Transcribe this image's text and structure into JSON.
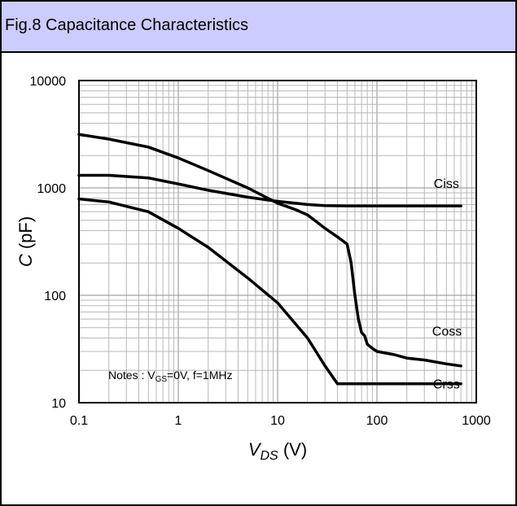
{
  "title": "Fig.8 Capacitance Characteristics",
  "chart_data": {
    "type": "line",
    "xscale": "log",
    "yscale": "log",
    "xlim": [
      0.1,
      1000
    ],
    "ylim": [
      10,
      10000
    ],
    "grid": true,
    "x_ticks": [
      "0.1",
      "1",
      "10",
      "100",
      "1000"
    ],
    "y_ticks": [
      "10",
      "100",
      "1000",
      "10000"
    ],
    "xlabel_main": "V",
    "xlabel_sub": "DS",
    "xlabel_unit": " (V)",
    "ylabel_main": "C",
    "ylabel_unit": " (pF)",
    "notes": {
      "prefix": "Notes : V",
      "sub": "GS",
      "suffix": "=0V,  f=1MHz"
    },
    "series": [
      {
        "name": "Ciss",
        "x": [
          0.1,
          0.2,
          0.5,
          1,
          2,
          5,
          10,
          15,
          20,
          30,
          50,
          100,
          300,
          700
        ],
        "y": [
          1310,
          1310,
          1240,
          1090,
          950,
          820,
          750,
          720,
          700,
          685,
          680,
          680,
          680,
          680
        ]
      },
      {
        "name": "Coss",
        "x": [
          0.1,
          0.2,
          0.5,
          1,
          2,
          5,
          10,
          15,
          20,
          25,
          30,
          40,
          50,
          55,
          60,
          65,
          70,
          75,
          80,
          90,
          100,
          150,
          200,
          300,
          500,
          700
        ],
        "y": [
          3150,
          2850,
          2400,
          1900,
          1450,
          1000,
          720,
          630,
          560,
          480,
          420,
          350,
          300,
          200,
          100,
          60,
          45,
          42,
          35,
          32,
          30,
          28,
          26,
          25,
          23,
          22
        ]
      },
      {
        "name": "Crss",
        "x": [
          0.1,
          0.2,
          0.5,
          1,
          2,
          5,
          10,
          20,
          30,
          40,
          50,
          100,
          300,
          700
        ],
        "y": [
          790,
          740,
          600,
          420,
          280,
          145,
          85,
          40,
          22,
          15,
          15,
          15,
          15,
          15
        ]
      }
    ]
  }
}
